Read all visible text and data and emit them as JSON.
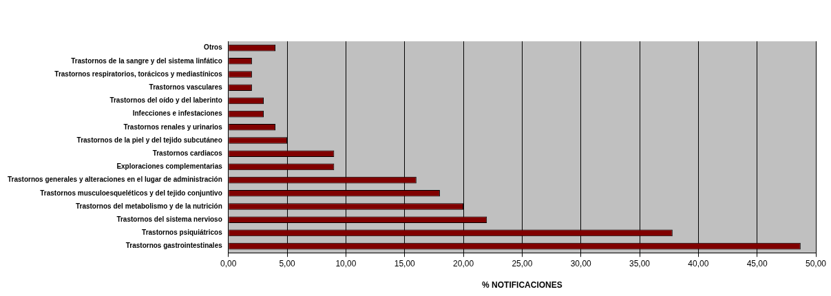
{
  "chart_data": {
    "type": "bar",
    "orientation": "horizontal",
    "xlabel": "% NOTIFICACIONES",
    "categories": [
      "Otros",
      "Trastornos de la sangre y del sistema linfático",
      "Trastornos respiratorios, torácicos y mediastínicos",
      "Trastornos vasculares",
      "Trastornos del oído y del laberinto",
      "Infecciones e infestaciones",
      "Trastornos renales y urinarios",
      "Trastornos de la piel y del tejido subcutáneo",
      "Trastornos cardiacos",
      "Exploraciones complementarias",
      "Trastornos generales y alteraciones en el lugar de administración",
      "Trastornos musculoesqueléticos y del tejido conjuntivo",
      "Trastornos del metabolismo y de la nutrición",
      "Trastornos del sistema nervioso",
      "Trastornos psiquiátricos",
      "Trastornos gastrointestinales"
    ],
    "values": [
      4.0,
      2.0,
      2.0,
      2.0,
      3.0,
      3.0,
      4.0,
      5.0,
      9.0,
      9.0,
      16.0,
      18.0,
      20.0,
      22.0,
      37.8,
      48.7
    ],
    "color": "#800000",
    "xlim": [
      0,
      50
    ],
    "xticks": [
      {
        "value": 0,
        "label": "0,00"
      },
      {
        "value": 5,
        "label": "5,00"
      },
      {
        "value": 10,
        "label": "10,00"
      },
      {
        "value": 15,
        "label": "15,00"
      },
      {
        "value": 20,
        "label": "20,00"
      },
      {
        "value": 25,
        "label": "25,00"
      },
      {
        "value": 30,
        "label": "30,00"
      },
      {
        "value": 35,
        "label": "35,00"
      },
      {
        "value": 40,
        "label": "40,00"
      },
      {
        "value": 45,
        "label": "45,00"
      },
      {
        "value": 50,
        "label": "50,00"
      }
    ],
    "grid": "x",
    "legend": false
  }
}
